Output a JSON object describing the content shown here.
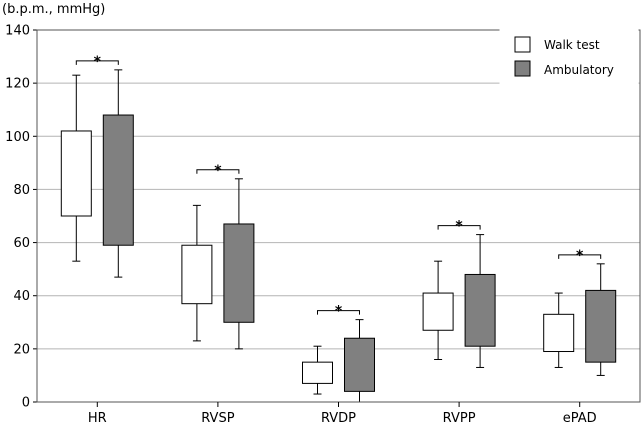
{
  "chart_data": {
    "type": "boxplot",
    "ylabel": "(b.p.m., mmHg)",
    "ylim": [
      0,
      140
    ],
    "yticks": [
      0,
      20,
      40,
      60,
      80,
      100,
      120,
      140
    ],
    "grid": true,
    "legend_position": "top-right",
    "categories": [
      "HR",
      "RVSP",
      "RVDP",
      "RVPP",
      "ePAD"
    ],
    "significance_marker": "*",
    "significant": [
      true,
      true,
      true,
      true,
      true
    ],
    "series": [
      {
        "name": "Walk test",
        "color": "#ffffff",
        "boxes": [
          {
            "whisker_low": 53,
            "q1": 70,
            "q3": 102,
            "whisker_high": 123
          },
          {
            "whisker_low": 23,
            "q1": 37,
            "q3": 59,
            "whisker_high": 74
          },
          {
            "whisker_low": 3,
            "q1": 7,
            "q3": 15,
            "whisker_high": 21
          },
          {
            "whisker_low": 16,
            "q1": 27,
            "q3": 41,
            "whisker_high": 53
          },
          {
            "whisker_low": 13,
            "q1": 19,
            "q3": 33,
            "whisker_high": 41
          }
        ]
      },
      {
        "name": "Ambulatory",
        "color": "#808080",
        "boxes": [
          {
            "whisker_low": 47,
            "q1": 59,
            "q3": 108,
            "whisker_high": 125
          },
          {
            "whisker_low": 20,
            "q1": 30,
            "q3": 67,
            "whisker_high": 84
          },
          {
            "whisker_low": 0,
            "q1": 4,
            "q3": 24,
            "whisker_high": 31
          },
          {
            "whisker_low": 13,
            "q1": 21,
            "q3": 48,
            "whisker_high": 63
          },
          {
            "whisker_low": 10,
            "q1": 15,
            "q3": 42,
            "whisker_high": 52
          }
        ]
      }
    ]
  }
}
